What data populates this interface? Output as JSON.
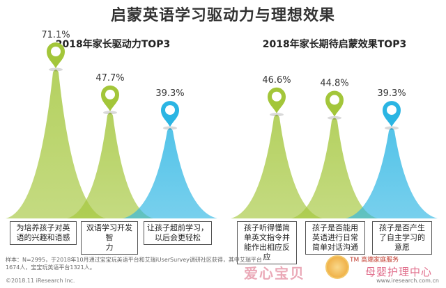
{
  "title": "启蒙英语学习驱动力与理想效果",
  "chart_data": [
    {
      "type": "area",
      "title": "2018年家长驱动力TOP3",
      "categories": [
        "为培养孩子对英语的兴趣和语感",
        "双语学习开发智力",
        "让孩子超前学习，以后会更轻松"
      ],
      "values": [
        71.1,
        47.7,
        39.3
      ],
      "value_labels": [
        "71.1%",
        "47.7%",
        "39.3%"
      ],
      "colors": [
        "#a3c63a",
        "#a3c63a",
        "#2bb5e3"
      ]
    },
    {
      "type": "area",
      "title": "2018年家长期待启蒙效果TOP3",
      "categories": [
        "孩子听得懂简单英文指令并能作出相应反应",
        "孩子是否能用英语进行日常简单对话沟通",
        "孩子是否产生了自主学习的意愿"
      ],
      "values": [
        46.6,
        44.8,
        39.3
      ],
      "value_labels": [
        "46.6%",
        "44.8%",
        "39.3%"
      ],
      "colors": [
        "#a3c63a",
        "#a3c63a",
        "#2bb5e3"
      ]
    }
  ],
  "left_labels": [
    "为培养孩子对英\n语的兴趣和语感",
    "双语学习开发智\n力",
    "让孩子超前学习，\n以后会更轻松"
  ],
  "right_labels": [
    "孩子听得懂简\n单英文指令并\n能作出相应反\n应",
    "孩子是否能用\n英语进行日常\n简单对话沟通",
    "孩子是否产生\n了自主学习的\n意愿"
  ],
  "note": "样本：N=2995，于2018年10月通过宝宝玩英语平台和艾瑞iUserSurvey调研社区获得，其中艾瑞平台1674人，宝宝玩英语平台1321人。",
  "footer_left": "©2018.11 iResearch Inc.",
  "footer_right": "www.iresearch.com.cn",
  "watermark": {
    "brand_cn": "爱心宝贝",
    "tm": "TM 高端家庭服务",
    "right_text": "母婴护理中心"
  }
}
